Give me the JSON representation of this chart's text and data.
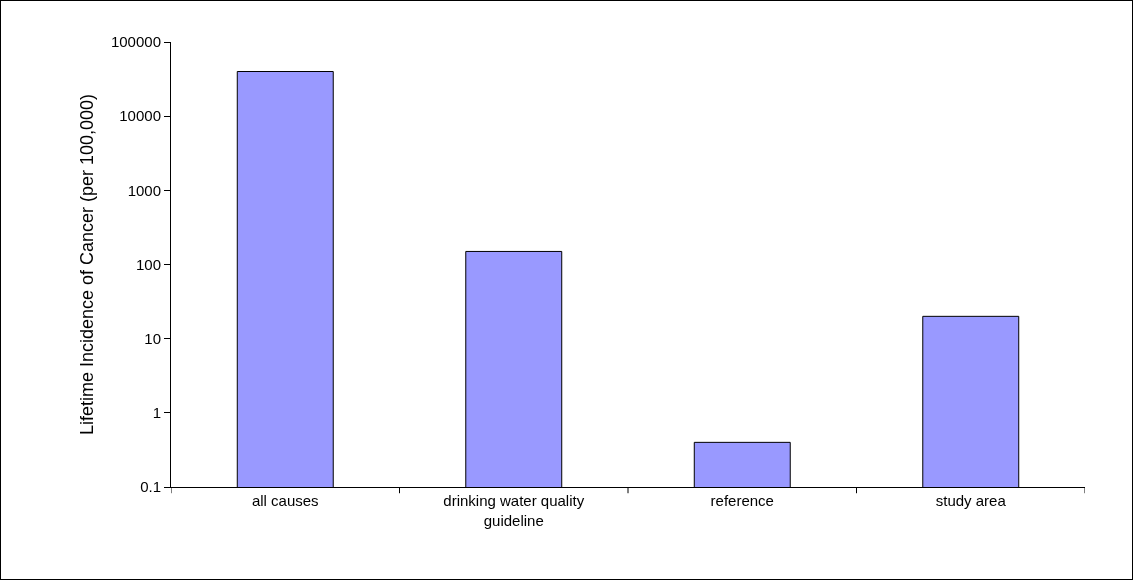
{
  "chart_data": {
    "type": "bar",
    "ylabel": "Lifetime Incidence of Cancer (per 100,000)",
    "categories": [
      "all causes",
      "drinking water quality guideline",
      "reference",
      "study area"
    ],
    "values": [
      40000,
      150,
      0.4,
      20
    ],
    "color": "#9999ff",
    "log": true,
    "ylim": [
      0.1,
      100000
    ],
    "yticks": [
      0.1,
      1,
      10,
      100,
      1000,
      10000,
      100000
    ],
    "grid": false
  }
}
